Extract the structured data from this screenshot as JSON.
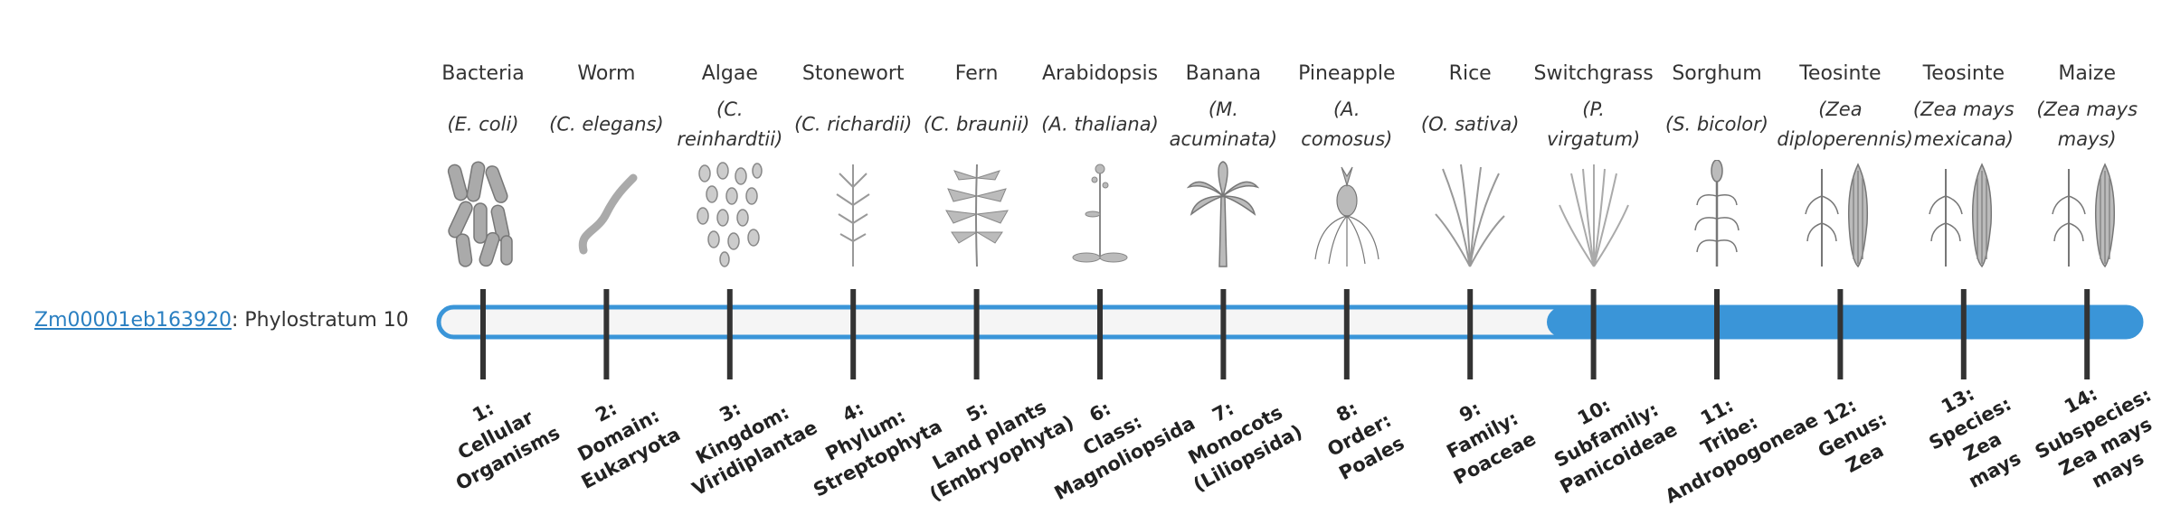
{
  "gene": {
    "id": "Zm00001eb163920",
    "suffix": ": Phylostratum 10"
  },
  "columns": [
    {
      "organism": "Bacteria",
      "species": [
        "(E. coli)"
      ],
      "stage": [
        "1:",
        "Cellular",
        "Organisms"
      ]
    },
    {
      "organism": "Worm",
      "species": [
        "(C. elegans)"
      ],
      "stage": [
        "2:",
        "Domain:",
        "Eukaryota"
      ]
    },
    {
      "organism": "Algae",
      "species": [
        "(C.",
        "reinhardtii)"
      ],
      "stage": [
        "3:",
        "Kingdom:",
        "Viridiplantae"
      ]
    },
    {
      "organism": "Stonewort",
      "species": [
        "(C. richardii)"
      ],
      "stage": [
        "4:",
        "Phylum:",
        "Streptophyta"
      ]
    },
    {
      "organism": "Fern",
      "species": [
        "(C. braunii)"
      ],
      "stage": [
        "5:",
        "Land plants",
        "(Embryophyta)"
      ]
    },
    {
      "organism": "Arabidopsis",
      "species": [
        "(A. thaliana)"
      ],
      "stage": [
        "6:",
        "Class:",
        "Magnoliopsida"
      ]
    },
    {
      "organism": "Banana",
      "species": [
        "(M.",
        "acuminata)"
      ],
      "stage": [
        "7:",
        "Monocots",
        "(Liliopsida)"
      ]
    },
    {
      "organism": "Pineapple",
      "species": [
        "(A.",
        "comosus)"
      ],
      "stage": [
        "8:",
        "Order:",
        "Poales"
      ]
    },
    {
      "organism": "Rice",
      "species": [
        "(O. sativa)"
      ],
      "stage": [
        "9:",
        "Family:",
        "Poaceae"
      ]
    },
    {
      "organism": "Switchgrass",
      "species": [
        "(P.",
        "virgatum)"
      ],
      "stage": [
        "10:",
        "Subfamily:",
        "Panicoideae"
      ]
    },
    {
      "organism": "Sorghum",
      "species": [
        "(S. bicolor)"
      ],
      "stage": [
        "11:",
        "Tribe:",
        "Andropogoneae"
      ]
    },
    {
      "organism": "Teosinte",
      "species": [
        "(Zea",
        "diploperennis)"
      ],
      "stage": [
        "12:",
        "Genus:",
        "Zea"
      ]
    },
    {
      "organism": "Teosinte",
      "species": [
        "(Zea mays",
        "mexicana)"
      ],
      "stage": [
        "13:",
        "Species:",
        "Zea",
        "mays"
      ]
    },
    {
      "organism": "Maize",
      "species": [
        "(Zea mays",
        "mays)"
      ],
      "stage": [
        "14:",
        "Subspecies:",
        "Zea mays",
        "mays"
      ]
    }
  ]
}
